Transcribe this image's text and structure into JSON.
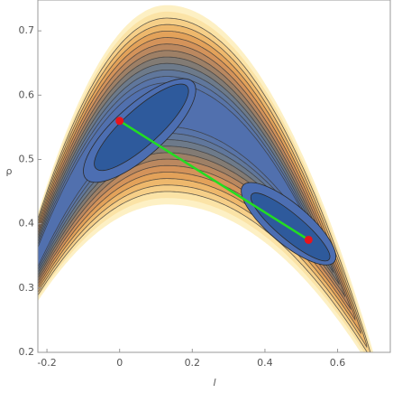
{
  "chart_data": {
    "type": "scatter",
    "xlabel": "l",
    "ylabel": "ρ",
    "x": [
      0,
      0.52
    ],
    "values": [
      0.56,
      0.375
    ],
    "color": "#e8141c",
    "line_color": "#22dd22",
    "xlim": [
      -0.225,
      0.745
    ],
    "ylim": [
      0.2,
      0.748
    ],
    "xticks": [
      -0.2,
      0,
      0.2,
      0.4,
      0.6
    ],
    "yticks": [
      0.2,
      0.3,
      0.4,
      0.5,
      0.6,
      0.7
    ]
  }
}
